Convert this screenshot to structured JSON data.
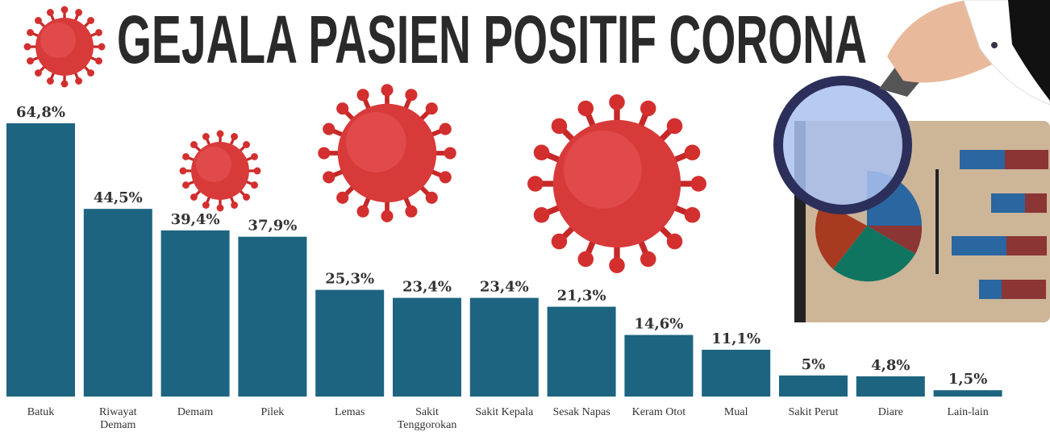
{
  "chart_data": {
    "type": "bar",
    "title": "GEJALA PASIEN POSITIF CORONA",
    "categories": [
      "Batuk",
      "Riwayat Demam",
      "Demam",
      "Pilek",
      "Lemas",
      "Sakit Tenggorokan",
      "Sakit Kepala",
      "Sesak Napas",
      "Keram Otot",
      "Mual",
      "Sakit Perut",
      "Diare",
      "Lain-lain"
    ],
    "values": [
      64.8,
      44.5,
      39.4,
      37.9,
      25.3,
      23.4,
      23.4,
      21.3,
      14.6,
      11.1,
      5,
      4.8,
      1.5
    ],
    "value_labels": [
      "64,8%",
      "44,5%",
      "39,4%",
      "37,9%",
      "25,3%",
      "23,4%",
      "23,4%",
      "21,3%",
      "14,6%",
      "11,1%",
      "5%",
      "4,8%",
      "1,5%"
    ],
    "color": "#1d6480"
  }
}
